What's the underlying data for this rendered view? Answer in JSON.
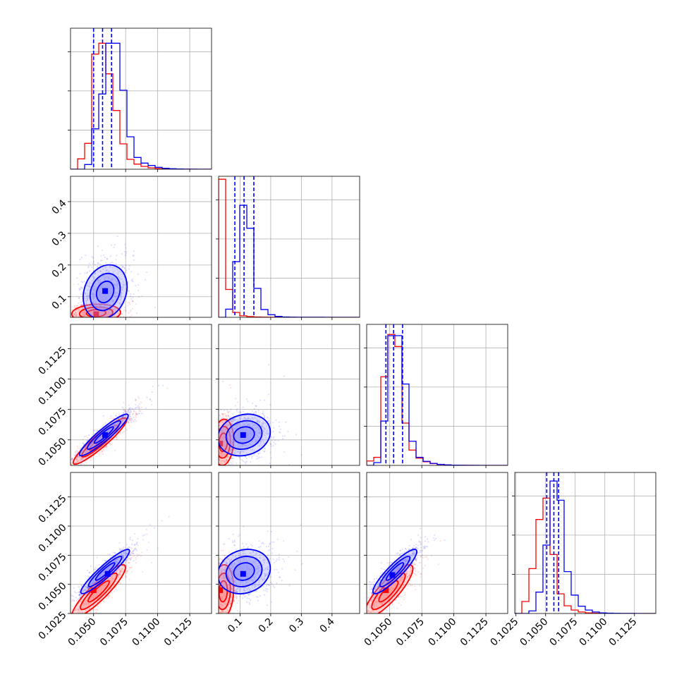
{
  "chart_data": {
    "type": "corner",
    "title": "",
    "grid": true,
    "series": [
      {
        "color": "#0000ff"
      },
      {
        "color": "#ff0000"
      }
    ],
    "quantiles_color": "#0000ff",
    "panels": [
      {
        "row": 0,
        "col": 0,
        "type": "histogram",
        "xlim": [
          0.1032,
          0.1142
        ],
        "ylim": [
          0,
          3000
        ],
        "bin_edges": [
          0.1032,
          0.10375,
          0.1043,
          0.10485,
          0.1054,
          0.10595,
          0.1065,
          0.10705,
          0.1076,
          0.10815,
          0.1087,
          0.10925,
          0.1098,
          0.11035,
          0.1109,
          0.11145,
          0.112,
          0.11255,
          0.1131,
          0.11365,
          0.1142
        ],
        "counts": [
          [
            0,
            0,
            100,
            860,
            1600,
            2680,
            2680,
            1680,
            690,
            250,
            130,
            80,
            40,
            20,
            10,
            5,
            2,
            1,
            0,
            0
          ],
          [
            0,
            220,
            550,
            2450,
            2680,
            2030,
            1250,
            540,
            210,
            110,
            60,
            30,
            15,
            8,
            4,
            2,
            1,
            0,
            0,
            0
          ]
        ],
        "quantile_lines": [
          0.105,
          0.1057,
          0.1064
        ]
      },
      {
        "row": 1,
        "col": 0,
        "type": "scatter",
        "xlim": [
          0.1032,
          0.1142
        ],
        "ylim": [
          0.035,
          0.48
        ],
        "yticks": [
          "0.1",
          "0.2",
          "0.3",
          "0.4"
        ],
        "yticks_values": [
          0.1,
          0.2,
          0.3,
          0.4
        ],
        "centers": [
          {
            "x": 0.1059,
            "y": 0.115,
            "sx": 0.0009,
            "sy": 0.045,
            "rho": 0.2
          },
          {
            "x": 0.1052,
            "y": 0.048,
            "sx": 0.001,
            "sy": 0.015,
            "rho": 0.1
          }
        ],
        "modes": [
          [
            0.1059,
            0.118
          ],
          [
            0.1052,
            0.045
          ]
        ]
      },
      {
        "row": 1,
        "col": 1,
        "type": "histogram",
        "xlim": [
          0.03,
          0.49
        ],
        "ylim": [
          0,
          3800
        ],
        "bin_edges": [
          0.03,
          0.053,
          0.076,
          0.099,
          0.122,
          0.145,
          0.168,
          0.191,
          0.214,
          0.237,
          0.26,
          0.283,
          0.306,
          0.329,
          0.352,
          0.375,
          0.398,
          0.421,
          0.444,
          0.467,
          0.49
        ],
        "counts": [
          [
            0,
            220,
            1500,
            3020,
            2400,
            780,
            210,
            70,
            25,
            10,
            5,
            3,
            2,
            1,
            1,
            0,
            0,
            0,
            0,
            0
          ],
          [
            3720,
            750,
            130,
            40,
            20,
            10,
            5,
            3,
            2,
            1,
            1,
            0,
            0,
            0,
            0,
            0,
            0,
            0,
            0,
            0
          ]
        ],
        "quantile_lines": [
          0.083,
          0.113,
          0.145
        ]
      },
      {
        "row": 2,
        "col": 0,
        "type": "scatter",
        "xlim": [
          0.1032,
          0.1142
        ],
        "ylim": [
          0.1029,
          0.1145
        ],
        "yticks": [
          "0.1050",
          "0.1075",
          "0.1100",
          "0.1125"
        ],
        "yticks_values": [
          0.105,
          0.1075,
          0.11,
          0.1125
        ],
        "centers": [
          {
            "x": 0.1058,
            "y": 0.1054,
            "sx": 0.001,
            "sy": 0.0009,
            "rho": 0.93
          },
          {
            "x": 0.1055,
            "y": 0.1049,
            "sx": 0.0011,
            "sy": 0.001,
            "rho": 0.93
          }
        ],
        "modes": [
          [
            0.1059,
            0.1054
          ],
          [
            0.1054,
            0.1048
          ]
        ]
      },
      {
        "row": 2,
        "col": 1,
        "type": "scatter",
        "xlim": [
          0.03,
          0.49
        ],
        "ylim": [
          0.1029,
          0.1145
        ],
        "centers": [
          {
            "x": 0.113,
            "y": 0.1054,
            "sx": 0.045,
            "sy": 0.0009,
            "rho": 0.15
          },
          {
            "x": 0.045,
            "y": 0.1048,
            "sx": 0.018,
            "sy": 0.001,
            "rho": 0.1
          }
        ],
        "modes": [
          [
            0.11,
            0.1054
          ],
          [
            0.035,
            0.1047
          ]
        ]
      },
      {
        "row": 2,
        "col": 2,
        "type": "histogram",
        "xlim": [
          0.1032,
          0.1142
        ],
        "ylim": [
          0,
          3500
        ],
        "bin_edges": [
          0.1032,
          0.10375,
          0.1043,
          0.10485,
          0.1054,
          0.10595,
          0.1065,
          0.10705,
          0.1076,
          0.10815,
          0.1087,
          0.10925,
          0.1098,
          0.11035,
          0.1109,
          0.11145,
          0.112,
          0.11255,
          0.1131,
          0.11365,
          0.1142
        ],
        "counts": [
          [
            0,
            70,
            1100,
            3220,
            3220,
            2020,
            600,
            200,
            100,
            50,
            25,
            12,
            6,
            3,
            1,
            1,
            0,
            0,
            0,
            0
          ],
          [
            110,
            200,
            2200,
            3250,
            2950,
            1050,
            380,
            180,
            90,
            45,
            22,
            11,
            5,
            2,
            1,
            0,
            0,
            0,
            0,
            0
          ]
        ],
        "quantile_lines": [
          0.1047,
          0.1053,
          0.106
        ]
      },
      {
        "row": 3,
        "col": 0,
        "type": "scatter",
        "xlim": [
          0.1032,
          0.1142
        ],
        "ylim": [
          0.1025,
          0.1146
        ],
        "xticks": [
          "0.1050",
          "0.1075",
          "0.1100",
          "0.1125"
        ],
        "xticks_values": [
          0.105,
          0.1075,
          0.11,
          0.1125
        ],
        "yticks": [
          "0.1025",
          "0.1050",
          "0.1075",
          "0.1100",
          "0.1125"
        ],
        "yticks_values": [
          0.1025,
          0.105,
          0.1075,
          0.11,
          0.1125
        ],
        "centers": [
          {
            "x": 0.1059,
            "y": 0.1061,
            "sx": 0.001,
            "sy": 0.001,
            "rho": 0.93
          },
          {
            "x": 0.1054,
            "y": 0.1044,
            "sx": 0.0011,
            "sy": 0.0012,
            "rho": 0.9
          }
        ],
        "modes": [
          [
            0.1061,
            0.1059
          ],
          [
            0.105,
            0.1045
          ]
        ]
      },
      {
        "row": 3,
        "col": 1,
        "type": "scatter",
        "xlim": [
          0.03,
          0.49
        ],
        "ylim": [
          0.1025,
          0.1146
        ],
        "xticks": [
          "0.1",
          "0.2",
          "0.3",
          "0.4"
        ],
        "xticks_values": [
          0.1,
          0.2,
          0.3,
          0.4
        ],
        "centers": [
          {
            "x": 0.113,
            "y": 0.1061,
            "sx": 0.045,
            "sy": 0.001,
            "rho": 0.15
          },
          {
            "x": 0.045,
            "y": 0.1044,
            "sx": 0.018,
            "sy": 0.0012,
            "rho": 0.1
          }
        ],
        "modes": [
          [
            0.11,
            0.1059
          ],
          [
            0.035,
            0.1045
          ]
        ]
      },
      {
        "row": 3,
        "col": 2,
        "type": "scatter",
        "xlim": [
          0.1032,
          0.1142
        ],
        "ylim": [
          0.1025,
          0.1146
        ],
        "xticks": [
          "0.1050",
          "0.1075",
          "0.1100",
          "0.1125"
        ],
        "xticks_values": [
          0.105,
          0.1075,
          0.11,
          0.1125
        ],
        "centers": [
          {
            "x": 0.1054,
            "y": 0.1061,
            "sx": 0.0009,
            "sy": 0.001,
            "rho": 0.9
          },
          {
            "x": 0.1049,
            "y": 0.1044,
            "sx": 0.001,
            "sy": 0.0012,
            "rho": 0.85
          }
        ],
        "modes": [
          [
            0.1052,
            0.1058
          ],
          [
            0.1047,
            0.1045
          ]
        ]
      },
      {
        "row": 3,
        "col": 3,
        "type": "histogram",
        "xlim": [
          0.1024,
          0.1143
        ],
        "ylim": [
          0,
          3300
        ],
        "xticks": [
          "0.1025",
          "0.1050",
          "0.1075",
          "0.1100",
          "0.1125"
        ],
        "xticks_values": [
          0.1025,
          0.105,
          0.1075,
          0.11,
          0.1125
        ],
        "bin_edges": [
          0.1024,
          0.102995,
          0.10359,
          0.104185,
          0.10478,
          0.105375,
          0.10597,
          0.106565,
          0.10716,
          0.107755,
          0.10835,
          0.108945,
          0.10954,
          0.110135,
          0.11073,
          0.111325,
          0.11192,
          0.112515,
          0.11311,
          0.113705,
          0.1143
        ],
        "counts": [
          [
            0,
            0,
            60,
            500,
            1600,
            3100,
            2650,
            980,
            430,
            170,
            80,
            35,
            15,
            8,
            4,
            2,
            1,
            0,
            0,
            0
          ],
          [
            0,
            280,
            1050,
            2200,
            2700,
            1380,
            460,
            180,
            80,
            35,
            15,
            7,
            3,
            1,
            0,
            0,
            0,
            0,
            0,
            0
          ]
        ],
        "quantile_lines": [
          0.1051,
          0.1057,
          0.1061
        ]
      }
    ]
  }
}
